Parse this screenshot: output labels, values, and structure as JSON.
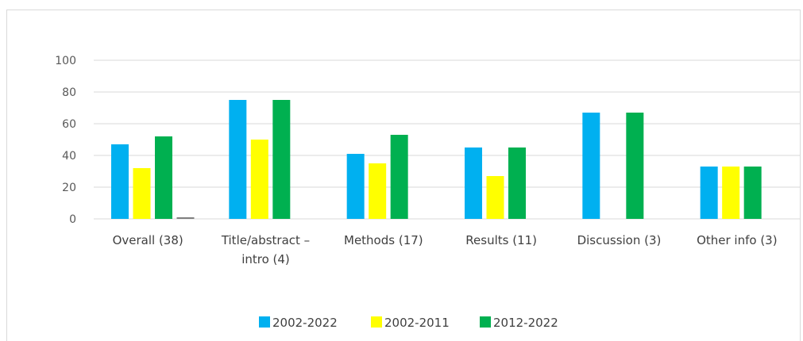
{
  "chart_data": {
    "type": "bar",
    "title": "",
    "xlabel": "",
    "ylabel": "",
    "ylim": [
      0,
      100
    ],
    "yticks": [
      "0",
      "20",
      "40",
      "60",
      "80",
      "100"
    ],
    "grid": true,
    "legend_position": "bottom",
    "categories": [
      [
        "Overall (38)"
      ],
      [
        "Title/abstract –",
        "intro (4)"
      ],
      [
        "Methods (17)"
      ],
      [
        "Results (11)"
      ],
      [
        "Discussion (3)"
      ],
      [
        "Other info (3)"
      ]
    ],
    "series": [
      {
        "name": "2002-2022",
        "color": "#00b0f0",
        "values": [
          47,
          75,
          41,
          45,
          67,
          33
        ]
      },
      {
        "name": "2002-2011",
        "color": "#ffff00",
        "values": [
          32,
          50,
          35,
          27,
          0,
          33
        ]
      },
      {
        "name": "2012-2022",
        "color": "#00b050",
        "values": [
          52,
          75,
          53,
          45,
          67,
          33
        ]
      },
      {
        "name": "",
        "color": "#7f7f7f",
        "values": [
          1,
          0,
          0,
          0,
          0,
          0
        ]
      }
    ]
  }
}
